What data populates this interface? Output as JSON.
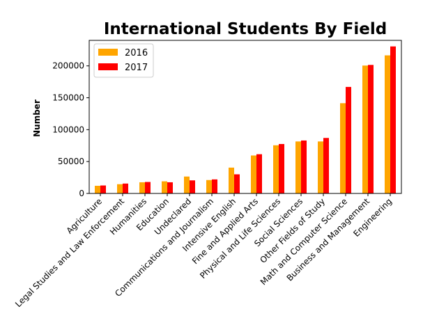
{
  "chart_data": {
    "type": "bar",
    "title": "International Students By Field",
    "xlabel": "",
    "ylabel": "Number",
    "ylim": [
      0,
      240000
    ],
    "yticks": [
      "0",
      "50000",
      "100000",
      "150000",
      "200000"
    ],
    "categories": [
      "Agriculture",
      "Legal Studies and Law Enforcement",
      "Humanities",
      "Education",
      "Undeclared",
      "Communications and Journalism",
      "Intensive English",
      "Fine and Applied Arts",
      "Physical and Life Sciences",
      "Social Sciences",
      "Other Fields of Study",
      "Math and Computer Science",
      "Business and Management",
      "Engineering"
    ],
    "series": [
      {
        "name": "2016",
        "color": "#ffa500",
        "values": [
          12000,
          14500,
          17500,
          19000,
          26500,
          21000,
          40500,
          59500,
          75500,
          81500,
          81500,
          141500,
          200500,
          216500
        ]
      },
      {
        "name": "2017",
        "color": "#ff0000",
        "values": [
          12500,
          15500,
          18000,
          17500,
          20500,
          22000,
          30000,
          61500,
          77500,
          83000,
          87000,
          167000,
          201500,
          230500
        ]
      }
    ],
    "legend_position": "upper-left",
    "grid": false
  }
}
